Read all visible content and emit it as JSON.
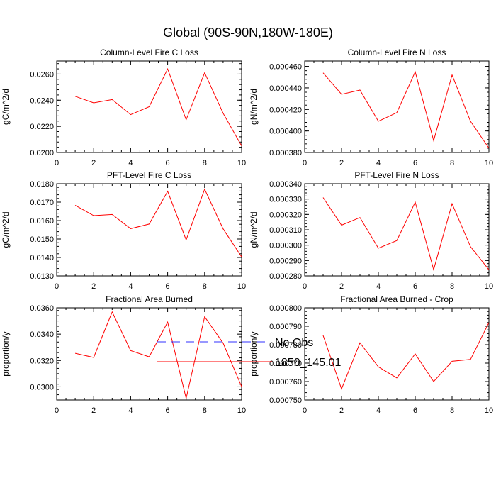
{
  "title": "Global (90S-90N,180W-180E)",
  "colors": {
    "series": "#ff0000",
    "obs": "#3030ff",
    "axis": "#000000"
  },
  "legend": [
    {
      "label": "No Obs",
      "style": "dashed",
      "color": "#3030ff"
    },
    {
      "label": "1850_145.01",
      "style": "solid",
      "color": "#ff0000"
    }
  ],
  "chart_data": [
    {
      "type": "line",
      "title": "Column-Level Fire C Loss",
      "ylabel": "gC/m^2/d",
      "xlim": [
        0,
        10
      ],
      "ylim": [
        0.02,
        0.027
      ],
      "xticks": [
        "0",
        "2",
        "4",
        "6",
        "8",
        "10"
      ],
      "yticks": [
        "0.0200",
        "0.0220",
        "0.0240",
        "0.0260"
      ],
      "ytick_values": [
        0.02,
        0.022,
        0.024,
        0.026
      ],
      "series": [
        {
          "name": "1850_145.01",
          "x": [
            1,
            2,
            3,
            4,
            5,
            6,
            7,
            8,
            9,
            10
          ],
          "y": [
            0.0243,
            0.0238,
            0.02405,
            0.0229,
            0.0235,
            0.0264,
            0.0225,
            0.0261,
            0.023,
            0.0205
          ]
        }
      ]
    },
    {
      "type": "line",
      "title": "Column-Level Fire N Loss",
      "ylabel": "gN/m^2/d",
      "xlim": [
        0,
        10
      ],
      "ylim": [
        0.00038,
        0.000465
      ],
      "xticks": [
        "0",
        "2",
        "4",
        "6",
        "8",
        "10"
      ],
      "yticks": [
        "0.000380",
        "0.000400",
        "0.000420",
        "0.000440",
        "0.000460"
      ],
      "ytick_values": [
        0.00038,
        0.0004,
        0.00042,
        0.00044,
        0.00046
      ],
      "series": [
        {
          "name": "1850_145.01",
          "x": [
            1,
            2,
            3,
            4,
            5,
            6,
            7,
            8,
            9,
            10
          ],
          "y": [
            0.000454,
            0.000434,
            0.000438,
            0.000409,
            0.000417,
            0.000455,
            0.000391,
            0.000452,
            0.000409,
            0.000384
          ]
        }
      ]
    },
    {
      "type": "line",
      "title": "PFT-Level Fire C Loss",
      "ylabel": "gC/m^2/d",
      "xlim": [
        0,
        10
      ],
      "ylim": [
        0.013,
        0.018
      ],
      "xticks": [
        "0",
        "2",
        "4",
        "6",
        "8",
        "10"
      ],
      "yticks": [
        "0.0130",
        "0.0140",
        "0.0150",
        "0.0160",
        "0.0170",
        "0.0180"
      ],
      "ytick_values": [
        0.013,
        0.014,
        0.015,
        0.016,
        0.017,
        0.018
      ],
      "series": [
        {
          "name": "1850_145.01",
          "x": [
            1,
            2,
            3,
            4,
            5,
            6,
            7,
            8,
            9,
            10
          ],
          "y": [
            0.01683,
            0.01627,
            0.01633,
            0.01556,
            0.01581,
            0.01759,
            0.01495,
            0.0177,
            0.01555,
            0.01403
          ]
        }
      ]
    },
    {
      "type": "line",
      "title": "PFT-Level Fire N Loss",
      "ylabel": "gN/m^2/d",
      "xlim": [
        0,
        10
      ],
      "ylim": [
        0.00028,
        0.00034
      ],
      "xticks": [
        "0",
        "2",
        "4",
        "6",
        "8",
        "10"
      ],
      "yticks": [
        "0.000280",
        "0.000290",
        "0.000300",
        "0.000310",
        "0.000320",
        "0.000330",
        "0.000340"
      ],
      "ytick_values": [
        0.00028,
        0.00029,
        0.0003,
        0.00031,
        0.00032,
        0.00033,
        0.00034
      ],
      "series": [
        {
          "name": "1850_145.01",
          "x": [
            1,
            2,
            3,
            4,
            5,
            6,
            7,
            8,
            9,
            10
          ],
          "y": [
            0.000331,
            0.000313,
            0.000318,
            0.000298,
            0.000303,
            0.000328,
            0.000284,
            0.000327,
            0.000299,
            0.000284
          ]
        }
      ]
    },
    {
      "type": "line",
      "title": "Fractional Area Burned",
      "ylabel": "proportion/y",
      "xlim": [
        0,
        10
      ],
      "ylim": [
        0.029,
        0.036
      ],
      "xticks": [
        "0",
        "2",
        "4",
        "6",
        "8",
        "10"
      ],
      "yticks": [
        "0.0300",
        "0.0320",
        "0.0340",
        "0.0360"
      ],
      "ytick_values": [
        0.03,
        0.032,
        0.034,
        0.036
      ],
      "series": [
        {
          "name": "1850_145.01",
          "x": [
            1,
            2,
            3,
            4,
            5,
            6,
            7,
            8,
            9,
            10
          ],
          "y": [
            0.03255,
            0.03223,
            0.03568,
            0.03275,
            0.03228,
            0.03491,
            0.02912,
            0.03532,
            0.03332,
            0.03002
          ]
        }
      ]
    },
    {
      "type": "line",
      "title": "Fractional Area Burned - Crop",
      "ylabel": "proportion/y",
      "xlim": [
        0,
        10
      ],
      "ylim": [
        0.00075,
        0.0008
      ],
      "xticks": [
        "0",
        "2",
        "4",
        "6",
        "8",
        "10"
      ],
      "yticks": [
        "0.000750",
        "0.000760",
        "0.000770",
        "0.000780",
        "0.000790",
        "0.000800"
      ],
      "ytick_values": [
        0.00075,
        0.00076,
        0.00077,
        0.00078,
        0.00079,
        0.0008
      ],
      "series": [
        {
          "name": "1850_145.01",
          "x": [
            1,
            2,
            3,
            4,
            5,
            6,
            7,
            8,
            9,
            10
          ],
          "y": [
            0.000785,
            0.000756,
            0.000781,
            0.000768,
            0.000762,
            0.000775,
            0.00076,
            0.000771,
            0.000772,
            0.000792
          ]
        }
      ]
    }
  ]
}
